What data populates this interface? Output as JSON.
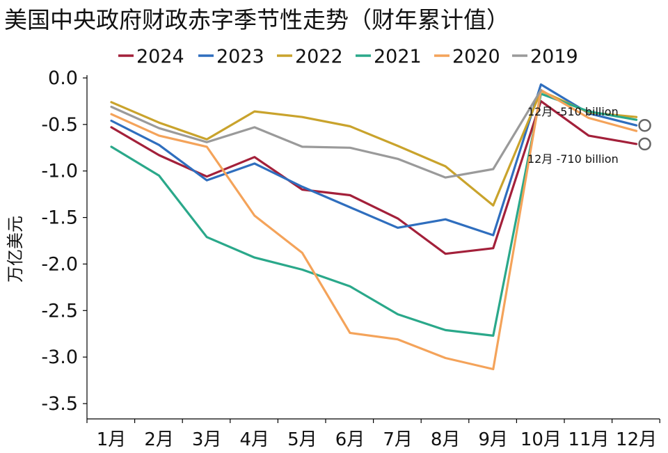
{
  "chart_data": {
    "type": "line",
    "title": "美国中央政府财政赤字季节性走势（财年累计值）",
    "xlabel": "",
    "ylabel": "万亿美元",
    "categories": [
      "1月",
      "2月",
      "3月",
      "4月",
      "5月",
      "6月",
      "7月",
      "8月",
      "9月",
      "10月",
      "11月",
      "12月"
    ],
    "ylim": [
      -3.5,
      0.0
    ],
    "yticks": [
      0.0,
      -0.5,
      -1.0,
      -1.5,
      -2.0,
      -2.5,
      -3.0,
      -3.5
    ],
    "ytick_labels": [
      "0.0",
      "-0.5",
      "-1.0",
      "-1.5",
      "-2.0",
      "-2.5",
      "-3.0",
      "-3.5"
    ],
    "grid": false,
    "legend_position": "top",
    "series": [
      {
        "name": "2024",
        "color": "#a3203a",
        "values": [
          -0.53,
          -0.83,
          -1.06,
          -0.85,
          -1.2,
          -1.26,
          -1.51,
          -1.89,
          -1.83,
          -0.25,
          -0.62,
          -0.71
        ]
      },
      {
        "name": "2023",
        "color": "#2f6ebe",
        "values": [
          -0.46,
          -0.72,
          -1.1,
          -0.92,
          -1.17,
          -1.39,
          -1.61,
          -1.52,
          -1.69,
          -0.07,
          -0.38,
          -0.51
        ]
      },
      {
        "name": "2022",
        "color": "#c9a32c",
        "values": [
          -0.26,
          -0.48,
          -0.66,
          -0.36,
          -0.42,
          -0.52,
          -0.73,
          -0.95,
          -1.37,
          -0.14,
          -0.37,
          -0.42
        ]
      },
      {
        "name": "2021",
        "color": "#2aa88a",
        "values": [
          -0.74,
          -1.05,
          -1.71,
          -1.93,
          -2.06,
          -2.24,
          -2.54,
          -2.71,
          -2.77,
          -0.17,
          -0.36,
          -0.45
        ]
      },
      {
        "name": "2020",
        "color": "#f4a35a",
        "values": [
          -0.39,
          -0.62,
          -0.74,
          -1.48,
          -1.88,
          -2.74,
          -2.81,
          -3.01,
          -3.13,
          -0.13,
          -0.43,
          -0.57
        ]
      },
      {
        "name": "2019",
        "color": "#9a9a9a",
        "values": [
          -0.31,
          -0.54,
          -0.69,
          -0.53,
          -0.74,
          -0.75,
          -0.87,
          -1.07,
          -0.98,
          -0.13,
          null,
          null
        ]
      }
    ],
    "annotations": [
      {
        "text": "12月 -510 billion",
        "series": "2023",
        "category": "12月",
        "value": -0.51
      },
      {
        "text": "12月 -710 billion",
        "series": "2024",
        "category": "12月",
        "value": -0.71
      }
    ]
  }
}
